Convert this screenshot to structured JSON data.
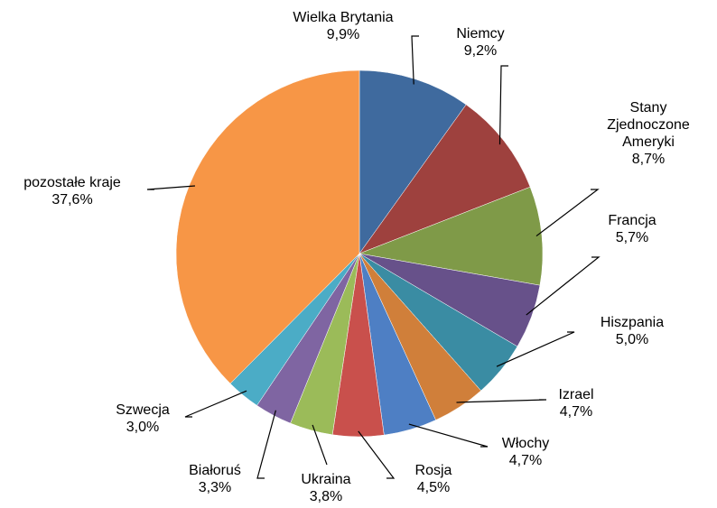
{
  "chart_data": {
    "type": "pie",
    "categories": [
      "Wielka Brytania",
      "Niemcy",
      "Stany Zjednoczone Ameryki",
      "Francja",
      "Hiszpania",
      "Izrael",
      "Włochy",
      "Rosja",
      "Ukraina",
      "Białoruś",
      "Szwecja",
      "pozostałe kraje"
    ],
    "values": [
      9.9,
      9.2,
      8.7,
      5.7,
      5.0,
      4.7,
      4.7,
      4.5,
      3.8,
      3.3,
      3.0,
      37.6
    ],
    "value_labels": [
      "9,9%",
      "9,2%",
      "8,7%",
      "5,7%",
      "5,0%",
      "4,7%",
      "4,7%",
      "4,5%",
      "3,8%",
      "3,3%",
      "3,0%",
      "37,6%"
    ],
    "colors": [
      "#3f6a9e",
      "#9e413e",
      "#7f9a48",
      "#67518a",
      "#3a8ca3",
      "#d07f3a",
      "#4e7fc4",
      "#c9504c",
      "#9bbb59",
      "#7f65a2",
      "#4bacc6",
      "#f79646"
    ]
  }
}
